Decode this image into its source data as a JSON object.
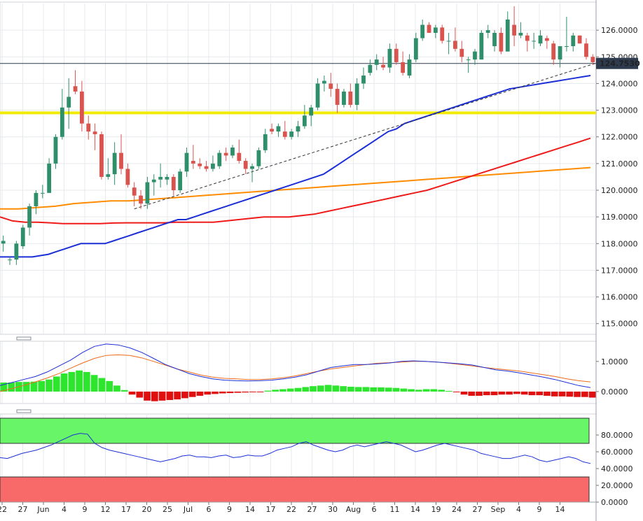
{
  "chart_data": [
    {
      "type": "candlestick",
      "ylim": [
        114.6,
        127.0
      ],
      "y_ticks": [
        "126.0000",
        "125.0000",
        "124.0000",
        "123.0000",
        "122.0000",
        "121.0000",
        "120.0000",
        "119.0000",
        "118.0000",
        "117.0000",
        "116.0000",
        "115.0000"
      ],
      "y_tick_values": [
        126,
        125,
        124,
        123,
        122,
        121,
        120,
        119,
        118,
        117,
        116,
        115
      ],
      "x_tick_labels": [
        "22",
        "27",
        "Jun",
        "4",
        "9",
        "12",
        "17",
        "20",
        "25",
        "Jul",
        "6",
        "9",
        "14",
        "17",
        "22",
        "27",
        "30",
        "Aug",
        "6",
        "11",
        "14",
        "19",
        "24",
        "27",
        "Sep",
        "4",
        "9",
        "14"
      ],
      "last_price_label": "124.7530",
      "last_price": 124.753,
      "horizontal_level": 122.9,
      "colors": {
        "up": "#2f8f6a",
        "down": "#d9534f",
        "ma_fast": "#1c2fd6",
        "ma_mid": "#ef1a1a",
        "ma_slow": "#ff8c00",
        "level": "#f2ea00",
        "trendline": "#333333",
        "last_price_bg": "#2e3b4e"
      },
      "trendline": {
        "start": [
          20,
          119.3
        ],
        "end": [
          80,
          123.95
        ]
      },
      "candles": [
        [
          118.0,
          118.3,
          117.7,
          118.1
        ],
        [
          117.4,
          117.5,
          117.2,
          117.4
        ],
        [
          117.4,
          118.1,
          117.2,
          118.0
        ],
        [
          117.9,
          118.7,
          117.8,
          118.6
        ],
        [
          118.6,
          119.5,
          118.3,
          119.4
        ],
        [
          119.4,
          120.0,
          119.1,
          119.9
        ],
        [
          119.9,
          120.2,
          119.7,
          119.9
        ],
        [
          119.9,
          121.2,
          119.9,
          121.0
        ],
        [
          121.0,
          122.1,
          120.8,
          122.0
        ],
        [
          122.0,
          123.8,
          121.9,
          123.1
        ],
        [
          123.1,
          124.2,
          122.3,
          123.5
        ],
        [
          123.9,
          124.5,
          123.6,
          123.7
        ],
        [
          123.7,
          124.1,
          122.2,
          122.5
        ],
        [
          122.5,
          122.8,
          121.9,
          122.2
        ],
        [
          122.2,
          122.5,
          121.5,
          122.1
        ],
        [
          122.1,
          122.2,
          120.4,
          120.5
        ],
        [
          120.5,
          121.2,
          120.4,
          120.6
        ],
        [
          120.6,
          121.8,
          120.2,
          121.4
        ],
        [
          121.4,
          122.1,
          120.6,
          120.8
        ],
        [
          120.8,
          121.0,
          120.1,
          120.2
        ],
        [
          120.1,
          120.3,
          119.4,
          119.8
        ],
        [
          119.8,
          120.0,
          119.3,
          119.5
        ],
        [
          119.5,
          120.5,
          119.3,
          120.3
        ],
        [
          120.3,
          120.6,
          119.8,
          120.4
        ],
        [
          120.4,
          121.0,
          120.1,
          120.5
        ],
        [
          120.4,
          120.6,
          120.2,
          120.5
        ],
        [
          120.5,
          120.6,
          119.8,
          120.0
        ],
        [
          120.0,
          120.8,
          119.9,
          120.7
        ],
        [
          120.7,
          121.6,
          120.5,
          121.4
        ],
        [
          121.1,
          121.7,
          120.8,
          121.0
        ],
        [
          121.0,
          121.2,
          120.8,
          120.9
        ],
        [
          120.9,
          121.1,
          120.7,
          120.8
        ],
        [
          120.8,
          121.3,
          120.7,
          121.0
        ],
        [
          120.9,
          121.5,
          120.8,
          121.4
        ],
        [
          121.4,
          121.6,
          121.1,
          121.3
        ],
        [
          121.3,
          121.7,
          121.2,
          121.6
        ],
        [
          121.4,
          121.9,
          121.0,
          121.1
        ],
        [
          121.1,
          121.2,
          120.6,
          120.8
        ],
        [
          120.8,
          121.0,
          120.3,
          120.9
        ],
        [
          120.9,
          121.6,
          120.8,
          121.5
        ],
        [
          121.5,
          122.3,
          121.4,
          122.1
        ],
        [
          122.3,
          122.5,
          122.1,
          122.2
        ],
        [
          122.2,
          122.5,
          122.0,
          122.4
        ],
        [
          122.2,
          122.6,
          121.9,
          122.0
        ],
        [
          122.0,
          122.3,
          121.9,
          122.2
        ],
        [
          122.2,
          122.6,
          122.0,
          122.4
        ],
        [
          122.4,
          123.2,
          122.3,
          122.8
        ],
        [
          122.8,
          123.2,
          122.4,
          123.1
        ],
        [
          123.1,
          124.2,
          123.0,
          124.0
        ],
        [
          124.0,
          124.3,
          123.7,
          124.1
        ],
        [
          124.0,
          124.4,
          123.5,
          123.8
        ],
        [
          123.8,
          124.0,
          122.9,
          123.2
        ],
        [
          123.2,
          123.8,
          123.1,
          123.7
        ],
        [
          123.7,
          124.0,
          123.1,
          123.2
        ],
        [
          123.2,
          124.2,
          123.0,
          124.0
        ],
        [
          124.0,
          124.6,
          123.8,
          124.3
        ],
        [
          124.4,
          124.9,
          124.3,
          124.7
        ],
        [
          124.7,
          125.1,
          124.5,
          124.9
        ],
        [
          124.7,
          125.0,
          124.5,
          124.6
        ],
        [
          124.6,
          125.5,
          124.4,
          125.3
        ],
        [
          125.3,
          125.5,
          124.7,
          124.8
        ],
        [
          124.8,
          125.2,
          124.3,
          124.4
        ],
        [
          124.3,
          125.1,
          124.2,
          124.9
        ],
        [
          124.9,
          125.9,
          124.8,
          125.7
        ],
        [
          125.7,
          126.4,
          125.6,
          126.2
        ],
        [
          126.2,
          126.3,
          125.9,
          125.9
        ],
        [
          125.9,
          126.2,
          125.7,
          126.1
        ],
        [
          126.1,
          126.2,
          125.5,
          125.6
        ],
        [
          125.6,
          125.9,
          125.1,
          125.6
        ],
        [
          125.6,
          126.1,
          125.2,
          125.3
        ],
        [
          125.3,
          125.6,
          124.8,
          125.0
        ],
        [
          124.9,
          125.0,
          124.4,
          124.9
        ],
        [
          124.9,
          125.3,
          124.7,
          125.2
        ],
        [
          124.9,
          126.0,
          124.9,
          125.9
        ],
        [
          125.9,
          126.2,
          125.7,
          126.0
        ],
        [
          125.4,
          126.0,
          125.2,
          125.9
        ],
        [
          125.9,
          126.1,
          125.1,
          125.2
        ],
        [
          125.2,
          126.7,
          125.2,
          126.4
        ],
        [
          126.2,
          126.9,
          125.4,
          125.8
        ],
        [
          125.8,
          126.3,
          125.7,
          125.9
        ],
        [
          125.8,
          125.9,
          125.2,
          125.6
        ],
        [
          125.6,
          125.9,
          125.3,
          125.6
        ],
        [
          125.5,
          126.0,
          125.4,
          125.8
        ],
        [
          125.7,
          125.8,
          125.3,
          125.6
        ],
        [
          125.5,
          125.6,
          124.7,
          124.9
        ],
        [
          124.9,
          125.4,
          124.6,
          125.4
        ],
        [
          125.4,
          126.5,
          125.2,
          125.4
        ],
        [
          125.4,
          125.9,
          125.2,
          125.8
        ],
        [
          125.8,
          125.8,
          125.5,
          125.5
        ],
        [
          125.5,
          125.7,
          124.9,
          125.0
        ],
        [
          125.0,
          125.1,
          124.7,
          124.8
        ]
      ],
      "ma_fast": [
        117.5,
        117.5,
        117.5,
        117.5,
        117.5,
        117.55,
        117.6,
        117.7,
        117.8,
        117.9,
        118.0,
        118.0,
        118.0,
        118.0,
        118.1,
        118.2,
        118.3,
        118.4,
        118.5,
        118.6,
        118.7,
        118.8,
        118.9,
        118.9,
        119.0,
        119.1,
        119.2,
        119.3,
        119.4,
        119.5,
        119.6,
        119.7,
        119.8,
        119.9,
        120.0,
        120.1,
        120.2,
        120.3,
        120.4,
        120.5,
        120.6,
        120.8,
        121.0,
        121.2,
        121.4,
        121.6,
        121.8,
        122.0,
        122.2,
        122.3,
        122.5,
        122.6,
        122.7,
        122.8,
        122.9,
        123.0,
        123.1,
        123.2,
        123.3,
        123.4,
        123.5,
        123.6,
        123.7,
        123.8,
        123.85,
        123.9,
        123.95,
        124.0,
        124.05,
        124.1,
        124.15,
        124.2,
        124.25,
        124.3
      ],
      "ma_mid": [
        119.0,
        118.85,
        118.8,
        118.8,
        118.78,
        118.75,
        118.75,
        118.75,
        118.75,
        118.77,
        118.78,
        118.78,
        118.78,
        118.78,
        118.8,
        118.8,
        118.8,
        118.8,
        118.85,
        118.9,
        118.95,
        119.0,
        119.0,
        119.0,
        119.05,
        119.1,
        119.2,
        119.3,
        119.4,
        119.5,
        119.6,
        119.7,
        119.8,
        119.9,
        120.0,
        120.15,
        120.3,
        120.45,
        120.6,
        120.75,
        120.9,
        121.05,
        121.2,
        121.35,
        121.5,
        121.65,
        121.8,
        121.95
      ],
      "ma_slow": [
        119.3,
        119.3,
        119.35,
        119.4,
        119.5,
        119.55,
        119.6,
        119.6,
        119.65,
        119.7,
        119.75,
        119.8,
        119.85,
        119.9,
        119.95,
        120.0,
        120.05,
        120.1,
        120.15,
        120.2,
        120.25,
        120.3,
        120.35,
        120.4,
        120.45,
        120.5,
        120.55,
        120.6,
        120.65,
        120.7,
        120.75,
        120.8,
        120.85
      ]
    },
    {
      "type": "macd",
      "ylim": [
        -0.35,
        1.6
      ],
      "y_ticks": [
        "1.0000",
        "0.0000"
      ],
      "y_tick_values": [
        1.0,
        0.0
      ],
      "colors": {
        "hist_up": "#2de52d",
        "hist_down": "#e01010",
        "macd": "#1c2fd6",
        "signal": "#ef6a1a"
      },
      "histogram": [
        0.3,
        0.3,
        0.32,
        0.32,
        0.33,
        0.35,
        0.4,
        0.5,
        0.6,
        0.65,
        0.7,
        0.65,
        0.55,
        0.45,
        0.35,
        0.2,
        0.05,
        -0.1,
        -0.2,
        -0.3,
        -0.32,
        -0.3,
        -0.28,
        -0.26,
        -0.22,
        -0.18,
        -0.14,
        -0.1,
        -0.08,
        -0.06,
        -0.05,
        -0.04,
        -0.03,
        -0.02,
        -0.02,
        0.03,
        0.06,
        0.08,
        0.1,
        0.12,
        0.15,
        0.18,
        0.2,
        0.22,
        0.2,
        0.18,
        0.16,
        0.15,
        0.15,
        0.14,
        0.14,
        0.13,
        0.12,
        0.1,
        0.08,
        0.06,
        0.08,
        0.08,
        0.06,
        0.02,
        -0.02,
        -0.1,
        -0.14,
        -0.14,
        -0.12,
        -0.12,
        -0.1,
        -0.1,
        -0.08,
        -0.1,
        -0.12,
        -0.12,
        -0.14,
        -0.16,
        -0.16,
        -0.17,
        -0.18,
        -0.18,
        -0.2
      ],
      "macd": [
        0.2,
        0.3,
        0.4,
        0.5,
        0.65,
        0.85,
        1.05,
        1.3,
        1.5,
        1.58,
        1.55,
        1.45,
        1.3,
        1.1,
        0.9,
        0.75,
        0.6,
        0.5,
        0.42,
        0.38,
        0.36,
        0.35,
        0.36,
        0.38,
        0.42,
        0.48,
        0.56,
        0.68,
        0.8,
        0.85,
        0.9,
        0.9,
        0.92,
        0.95,
        1.0,
        1.02,
        1.0,
        0.98,
        0.95,
        0.92,
        0.88,
        0.8,
        0.72,
        0.68,
        0.62,
        0.55,
        0.48,
        0.4,
        0.3,
        0.2,
        0.13
      ],
      "signal": [
        0.0,
        0.1,
        0.2,
        0.32,
        0.45,
        0.6,
        0.78,
        0.95,
        1.1,
        1.2,
        1.22,
        1.2,
        1.12,
        1.0,
        0.88,
        0.75,
        0.65,
        0.55,
        0.48,
        0.44,
        0.42,
        0.4,
        0.4,
        0.42,
        0.46,
        0.52,
        0.6,
        0.68,
        0.75,
        0.8,
        0.85,
        0.9,
        0.94,
        0.96,
        0.98,
        1.0,
        1.0,
        0.98,
        0.94,
        0.9,
        0.85,
        0.8,
        0.76,
        0.72,
        0.68,
        0.62,
        0.56,
        0.5,
        0.42,
        0.36,
        0.32
      ]
    },
    {
      "type": "rsi",
      "ylim": [
        0,
        100
      ],
      "y_ticks": [
        "80.0000",
        "60.0000",
        "40.0000",
        "20.0000",
        "0.0000"
      ],
      "y_tick_values": [
        80,
        60,
        40,
        20,
        0
      ],
      "overbought": 70,
      "oversold": 30,
      "colors": {
        "overbought_zone": "#68f568",
        "oversold_zone": "#f86a6a",
        "line": "#1c2fd6"
      },
      "values": [
        53,
        52,
        55,
        58,
        60,
        62,
        65,
        68,
        72,
        76,
        80,
        82,
        81,
        70,
        65,
        62,
        60,
        58,
        56,
        54,
        52,
        50,
        48,
        50,
        52,
        55,
        56,
        54,
        54,
        53,
        55,
        56,
        53,
        54,
        56,
        55,
        55,
        58,
        62,
        64,
        66,
        70,
        72,
        68,
        65,
        62,
        60,
        62,
        66,
        68,
        66,
        68,
        70,
        72,
        70,
        68,
        64,
        60,
        62,
        65,
        68,
        70,
        68,
        66,
        64,
        62,
        58,
        56,
        54,
        52,
        52,
        54,
        56,
        54,
        50,
        48,
        50,
        52,
        54,
        52,
        48,
        46
      ]
    }
  ]
}
